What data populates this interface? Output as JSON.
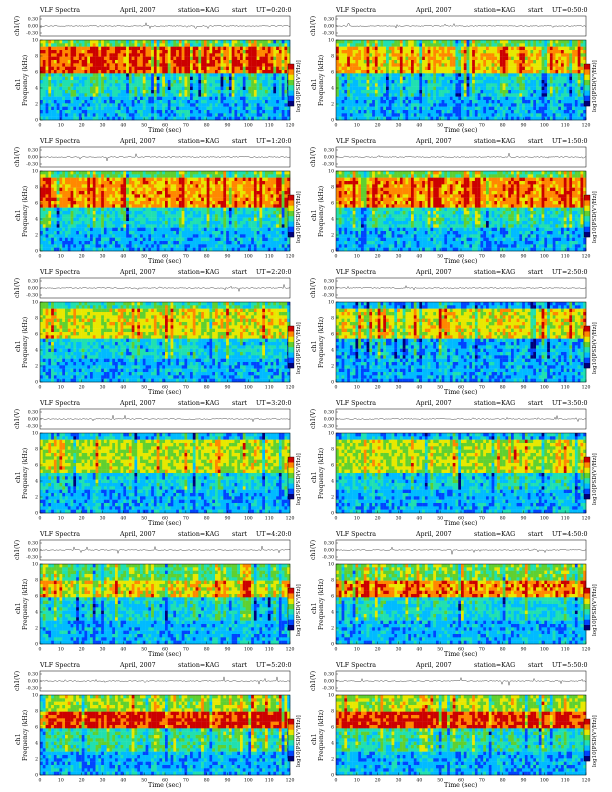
{
  "panels": [
    {
      "title_instrument": "VLF Spectra",
      "title_date": "April, 2007",
      "title_station": "station=KAG",
      "title_start": "start",
      "title_ut": "UT",
      "title_time": "=0:20:0",
      "bands": [
        {
          "f": [
            6,
            9
          ],
          "lvl": 0.85
        },
        {
          "f": [
            9,
            9.8
          ],
          "lvl": 0.55
        },
        {
          "f": [
            3,
            6
          ],
          "lvl": 0.4
        }
      ]
    },
    {
      "title_instrument": "VLF Spectra",
      "title_date": "April, 2007",
      "title_station": "station=KAG",
      "title_start": "start",
      "title_ut": "UT",
      "title_time": "=0:50:0",
      "bands": [
        {
          "f": [
            6,
            9
          ],
          "lvl": 0.72
        },
        {
          "f": [
            9,
            9.8
          ],
          "lvl": 0.5
        },
        {
          "f": [
            3,
            6
          ],
          "lvl": 0.35
        }
      ]
    },
    {
      "title_instrument": "VLF Spectra",
      "title_date": "April, 2007",
      "title_station": "station=KAG",
      "title_start": "start",
      "title_ut": "UT",
      "title_time": "=1:20:0",
      "bands": [
        {
          "f": [
            5.5,
            9
          ],
          "lvl": 0.78
        },
        {
          "f": [
            9,
            9.8
          ],
          "lvl": 0.5
        },
        {
          "f": [
            3,
            5.5
          ],
          "lvl": 0.38
        }
      ]
    },
    {
      "title_instrument": "VLF Spectra",
      "title_date": "April, 2007",
      "title_station": "station=KAG",
      "title_start": "start",
      "title_ut": "UT",
      "title_time": "=1:50:0",
      "bands": [
        {
          "f": [
            5.5,
            9
          ],
          "lvl": 0.8
        },
        {
          "f": [
            9,
            9.8
          ],
          "lvl": 0.52
        },
        {
          "f": [
            3,
            5.5
          ],
          "lvl": 0.4
        }
      ]
    },
    {
      "title_instrument": "VLF Spectra",
      "title_date": "April, 2007",
      "title_station": "station=KAG",
      "title_start": "start",
      "title_ut": "UT",
      "title_time": "=2:20:0",
      "bands": [
        {
          "f": [
            5.5,
            9
          ],
          "lvl": 0.66
        },
        {
          "f": [
            9,
            9.8
          ],
          "lvl": 0.45
        },
        {
          "f": [
            3,
            5.5
          ],
          "lvl": 0.35
        }
      ]
    },
    {
      "title_instrument": "VLF Spectra",
      "title_date": "April, 2007",
      "title_station": "station=KAG",
      "title_start": "start",
      "title_ut": "UT",
      "title_time": "=2:50:0",
      "bands": [
        {
          "f": [
            5.5,
            9
          ],
          "lvl": 0.68
        },
        {
          "f": [
            9,
            9.8
          ],
          "lvl": 0.28
        },
        {
          "f": [
            3,
            5.5
          ],
          "lvl": 0.3
        }
      ]
    },
    {
      "title_instrument": "VLF Spectra",
      "title_date": "April, 2007",
      "title_station": "station=KAG",
      "title_start": "start",
      "title_ut": "UT",
      "title_time": "=3:20:0",
      "bands": [
        {
          "f": [
            5,
            9
          ],
          "lvl": 0.62
        },
        {
          "f": [
            9,
            9.8
          ],
          "lvl": 0.3
        },
        {
          "f": [
            3,
            5
          ],
          "lvl": 0.35
        }
      ]
    },
    {
      "title_instrument": "VLF Spectra",
      "title_date": "April, 2007",
      "title_station": "station=KAG",
      "title_start": "start",
      "title_ut": "UT",
      "title_time": "=3:50:0",
      "bands": [
        {
          "f": [
            5,
            9
          ],
          "lvl": 0.62
        },
        {
          "f": [
            9,
            9.8
          ],
          "lvl": 0.3
        },
        {
          "f": [
            3,
            5
          ],
          "lvl": 0.35
        }
      ]
    },
    {
      "title_instrument": "VLF Spectra",
      "title_date": "April, 2007",
      "title_station": "station=KAG",
      "title_start": "start",
      "title_ut": "UT",
      "title_time": "=4:20:0",
      "bands": [
        {
          "f": [
            6,
            8
          ],
          "lvl": 0.68
        },
        {
          "f": [
            8,
            9.8
          ],
          "lvl": 0.5
        },
        {
          "f": [
            3,
            6
          ],
          "lvl": 0.35
        }
      ]
    },
    {
      "title_instrument": "VLF Spectra",
      "title_date": "April, 2007",
      "title_station": "station=KAG",
      "title_start": "start",
      "title_ut": "UT",
      "title_time": "=4:50:0",
      "bands": [
        {
          "f": [
            6,
            8
          ],
          "lvl": 0.8
        },
        {
          "f": [
            8,
            9.8
          ],
          "lvl": 0.55
        },
        {
          "f": [
            3,
            6
          ],
          "lvl": 0.38
        }
      ]
    },
    {
      "title_instrument": "VLF Spectra",
      "title_date": "April, 2007",
      "title_station": "station=KAG",
      "title_start": "start",
      "title_ut": "UT",
      "title_time": "=5:20:0",
      "bands": [
        {
          "f": [
            6,
            8
          ],
          "lvl": 0.9
        },
        {
          "f": [
            8,
            9.8
          ],
          "lvl": 0.6
        },
        {
          "f": [
            3,
            6
          ],
          "lvl": 0.45
        }
      ]
    },
    {
      "title_instrument": "VLF Spectra",
      "title_date": "April, 2007",
      "title_station": "station=KAG",
      "title_start": "start",
      "title_ut": "UT",
      "title_time": "=5:50:0",
      "bands": [
        {
          "f": [
            6,
            8
          ],
          "lvl": 0.88
        },
        {
          "f": [
            8,
            9.8
          ],
          "lvl": 0.6
        },
        {
          "f": [
            3,
            6
          ],
          "lvl": 0.42
        }
      ]
    }
  ],
  "labels": {
    "voltage_axis": "ch1(V)",
    "channel": "ch1",
    "frequency_axis": "Frequency (kHz)",
    "time_axis": "Time (sec)",
    "colorbar_label": "log10[PSD(V²/Hz)]"
  },
  "chart_data": {
    "type": "heatmap",
    "count": 12,
    "x_axis": {
      "label": "Time (sec)",
      "range": [
        0,
        120
      ],
      "ticks": [
        0,
        10,
        20,
        30,
        40,
        50,
        60,
        70,
        80,
        90,
        100,
        110,
        120
      ]
    },
    "y_axis": {
      "label": "Frequency (kHz)",
      "range": [
        0,
        10
      ],
      "ticks": [
        0,
        2,
        4,
        6,
        8,
        10
      ]
    },
    "voltage_axis": {
      "label": "ch1(V)",
      "ticks": [
        "0.30",
        "0.00",
        "-0.30"
      ]
    },
    "colorscale": [
      "#00007a",
      "#0044ff",
      "#00bbff",
      "#20e0b0",
      "#60d030",
      "#e8e800",
      "#ff8800",
      "#cc0000"
    ]
  }
}
